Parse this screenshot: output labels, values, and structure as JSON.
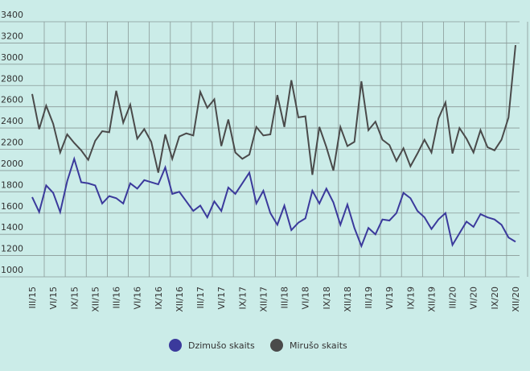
{
  "chart_data": {
    "type": "line",
    "categories": [
      "III/15",
      null,
      null,
      "VI/15",
      null,
      null,
      "IX/15",
      null,
      null,
      "XII/15",
      null,
      null,
      "III/16",
      null,
      null,
      "VI/16",
      null,
      null,
      "IX/16",
      null,
      null,
      "XII/16",
      null,
      null,
      "III/17",
      null,
      null,
      "VI/17",
      null,
      null,
      "IX/17",
      null,
      null,
      "XII/17",
      null,
      null,
      "III/18",
      null,
      null,
      "VI/18",
      null,
      null,
      "IX/18",
      null,
      null,
      "XII/18",
      null,
      null,
      "III/19",
      null,
      null,
      "VI/19",
      null,
      null,
      "IX/19",
      null,
      null,
      "XII/19",
      null,
      null,
      "III/20",
      null,
      null,
      "VI/20",
      null,
      null,
      "IX/20",
      null,
      null,
      "XII/20"
    ],
    "series": [
      {
        "name": "Dzimušo skaits",
        "color": "#3b3a9c",
        "values": [
          1750,
          1610,
          1860,
          1790,
          1610,
          1900,
          2110,
          1890,
          1880,
          1860,
          1690,
          1760,
          1740,
          1690,
          1880,
          1830,
          1910,
          1890,
          1870,
          2030,
          1780,
          1800,
          1710,
          1620,
          1670,
          1560,
          1710,
          1620,
          1840,
          1780,
          1880,
          1980,
          1690,
          1810,
          1600,
          1490,
          1670,
          1440,
          1510,
          1550,
          1810,
          1690,
          1830,
          1700,
          1490,
          1680,
          1460,
          1290,
          1460,
          1400,
          1540,
          1530,
          1600,
          1790,
          1740,
          1620,
          1560,
          1450,
          1540,
          1600,
          1300,
          1410,
          1520,
          1470,
          1590,
          1560,
          1540,
          1490,
          1370,
          1330
        ]
      },
      {
        "name": "Mirušo skaits",
        "color": "#4a4a4a",
        "values": [
          2720,
          2390,
          2610,
          2440,
          2170,
          2340,
          2260,
          2190,
          2100,
          2280,
          2370,
          2360,
          2750,
          2450,
          2620,
          2300,
          2390,
          2270,
          1980,
          2340,
          2110,
          2320,
          2350,
          2330,
          2740,
          2590,
          2670,
          2230,
          2480,
          2170,
          2110,
          2150,
          2410,
          2330,
          2340,
          2710,
          2410,
          2850,
          2500,
          2510,
          1960,
          2410,
          2220,
          2000,
          2410,
          2230,
          2270,
          2840,
          2380,
          2460,
          2290,
          2240,
          2090,
          2210,
          2040,
          2160,
          2290,
          2170,
          2490,
          2640,
          2160,
          2400,
          2300,
          2170,
          2380,
          2220,
          2190,
          2290,
          2500,
          3180
        ]
      }
    ],
    "ylim": [
      1000,
      3400
    ],
    "yticks": [
      1000,
      1200,
      1400,
      1600,
      1800,
      2000,
      2200,
      2400,
      2600,
      2800,
      3000,
      3200,
      3400
    ],
    "grid": true,
    "legend": "bottom"
  }
}
